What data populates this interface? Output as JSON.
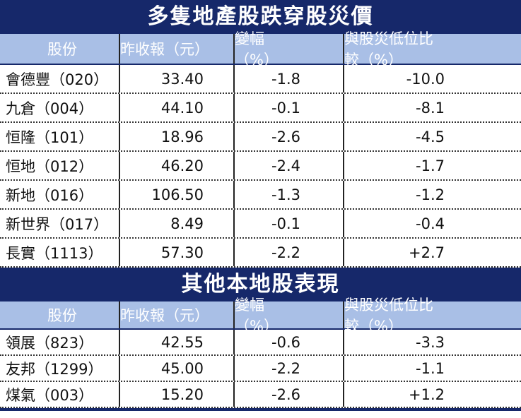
{
  "sections": [
    {
      "title": "多隻地產股跌穿股災價",
      "headers": [
        "股份",
        "昨收報（元）",
        "變幅（%）",
        "與股災低位比較（%）"
      ],
      "rows": [
        [
          "會德豐（020）",
          "33.40",
          "-1.8",
          "-10.0"
        ],
        [
          "九倉（004）",
          "44.10",
          "-0.1",
          "-8.1"
        ],
        [
          "恒隆（101）",
          "18.96",
          "-2.6",
          "-4.5"
        ],
        [
          "恒地（012）",
          "46.20",
          "-2.4",
          "-1.7"
        ],
        [
          "新地（016）",
          "106.50",
          "-1.3",
          "-1.2"
        ],
        [
          "新世界（017）",
          "8.49",
          "-0.1",
          "-0.4"
        ],
        [
          "長實（1113）",
          "57.30",
          "-2.2",
          "+2.7"
        ]
      ]
    },
    {
      "title": "其他本地股表現",
      "headers": [
        "股份",
        "昨收報（元）",
        "變幅（%）",
        "與股災低位比較（%）"
      ],
      "rows": [
        [
          "領展（823）",
          "42.55",
          "-0.6",
          "-3.3"
        ],
        [
          "友邦（1299）",
          "45.00",
          "-2.2",
          "-1.1"
        ],
        [
          "煤氣（003）",
          "15.20",
          "-2.6",
          "+1.2"
        ]
      ]
    }
  ]
}
